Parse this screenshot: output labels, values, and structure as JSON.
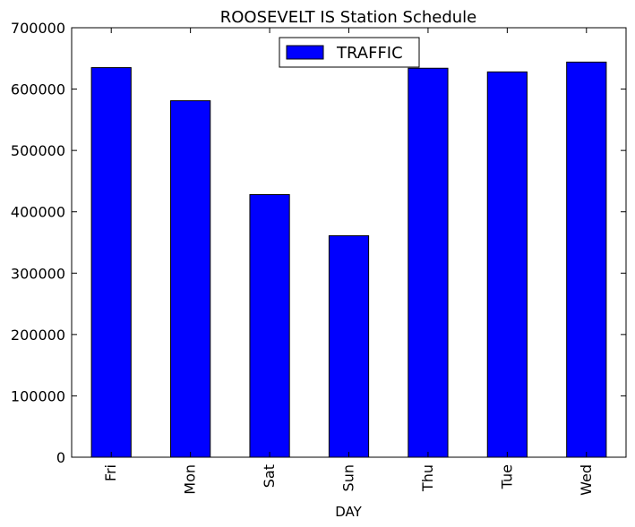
{
  "chart_data": {
    "type": "bar",
    "title": "ROOSEVELT IS Station Schedule",
    "xlabel": "DAY",
    "ylabel": "",
    "categories": [
      "Fri",
      "Mon",
      "Sat",
      "Sun",
      "Thu",
      "Tue",
      "Wed"
    ],
    "series": [
      {
        "name": "TRAFFIC",
        "values": [
          635000,
          581000,
          428000,
          361000,
          634000,
          628000,
          644000
        ],
        "color": "#0000ff"
      }
    ],
    "ylim": [
      0,
      700000
    ],
    "yticks": [
      0,
      100000,
      200000,
      300000,
      400000,
      500000,
      600000,
      700000
    ],
    "ytick_labels": [
      "0",
      "100000",
      "200000",
      "300000",
      "400000",
      "500000",
      "600000",
      "700000"
    ],
    "grid": false,
    "legend": {
      "placement": "upper-center",
      "entries": [
        "TRAFFIC"
      ]
    }
  }
}
